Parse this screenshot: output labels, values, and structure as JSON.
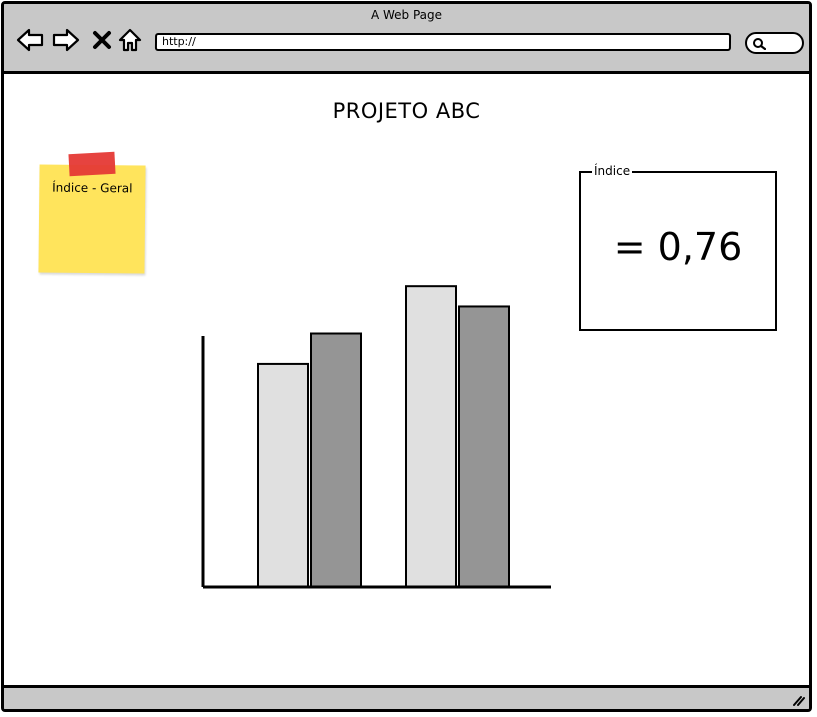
{
  "window": {
    "title": "A Web Page"
  },
  "navigation": {
    "back_icon": "arrow-left-icon",
    "forward_icon": "arrow-right-icon",
    "stop_icon": "close-icon",
    "home_icon": "home-icon",
    "url": "http://",
    "search_icon": "search-icon"
  },
  "page": {
    "title": "PROJETO ABC",
    "sticky_note": {
      "label": "Índice - Geral",
      "color": "#ffe45c",
      "tape_color": "#e53935"
    },
    "index_box": {
      "legend": "Índice",
      "value": "= 0,76"
    }
  },
  "chart_data": {
    "type": "bar",
    "categories": [
      "",
      ""
    ],
    "series": [
      {
        "color": "#e0e0e0",
        "values": [
          66,
          89
        ]
      },
      {
        "color": "#959595",
        "values": [
          75,
          83
        ]
      }
    ],
    "ylim": [
      0,
      100
    ],
    "xlabel": "",
    "ylabel": "",
    "grid": false
  }
}
